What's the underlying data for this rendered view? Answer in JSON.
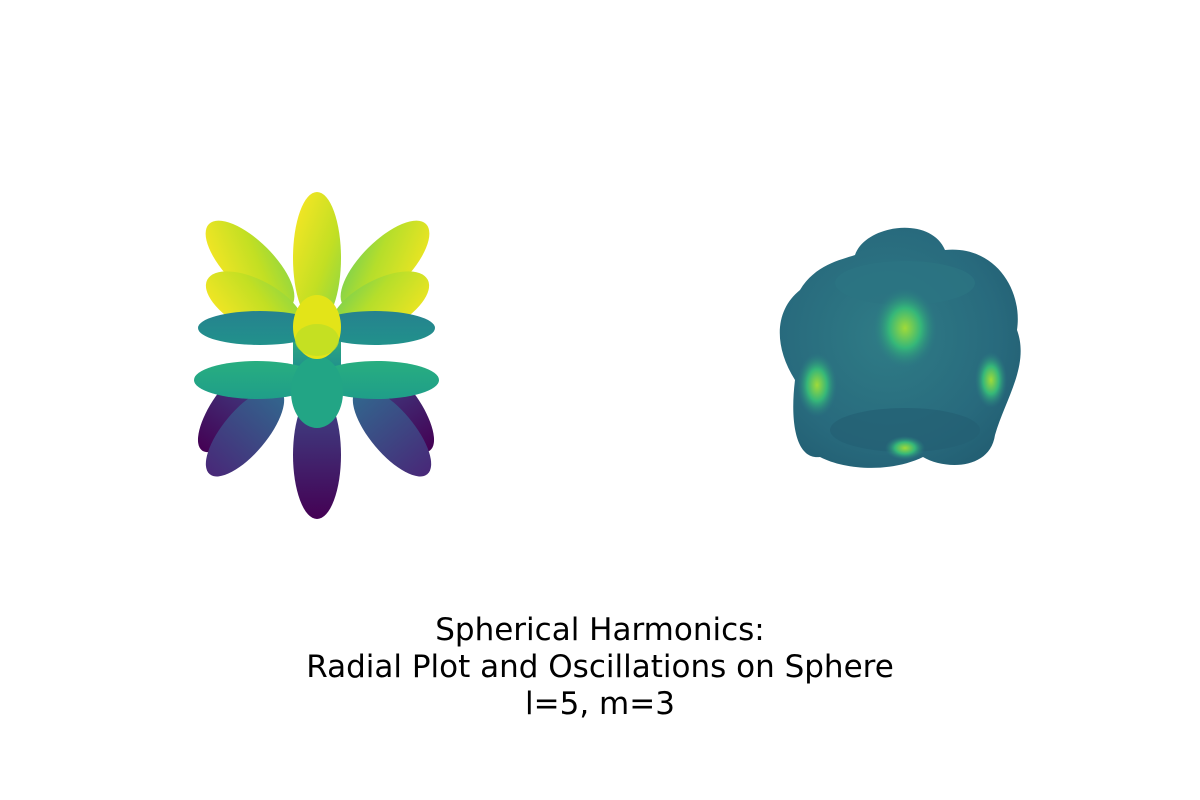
{
  "title_lines": [
    "Spherical Harmonics:",
    "Radial Plot and Oscillations on Sphere",
    "l=5, m=3"
  ],
  "chart_data": [
    {
      "type": "surface3d",
      "panel": "left",
      "function": "|Re Y(l,m)|",
      "l": 5,
      "m": 3,
      "colormap": "viridis",
      "axes_visible": false,
      "lobe_tiers": [
        {
          "tier": "top",
          "count": 5,
          "color_level": 0.92
        },
        {
          "tier": "upper-middle",
          "count": 5,
          "color_level": 0.86
        },
        {
          "tier": "center",
          "count": 1,
          "color_level": 0.9
        },
        {
          "tier": "equator-upper",
          "count": 2,
          "color_level": 0.55
        },
        {
          "tier": "equator-lower",
          "count": 2,
          "color_level": 0.5
        },
        {
          "tier": "lower",
          "count": 5,
          "color_level": 0.15
        },
        {
          "tier": "bottom",
          "count": 5,
          "color_level": 0.05
        }
      ]
    },
    {
      "type": "surface3d",
      "panel": "right",
      "function": "sphere deformed by Re Y(l,m)",
      "l": 5,
      "m": 3,
      "colormap": "viridis",
      "axes_visible": false,
      "base_color_level": 0.38,
      "highlight_color_level": 0.8,
      "bumps": 5
    }
  ],
  "colors": {
    "viridis_dark": "#440154",
    "viridis_blue": "#31688e",
    "viridis_teal": "#21918c",
    "viridis_green": "#35b779",
    "viridis_yellow": "#fde725",
    "sphere_base": "#2a6e7e",
    "sphere_highlight": "#7ad151"
  }
}
